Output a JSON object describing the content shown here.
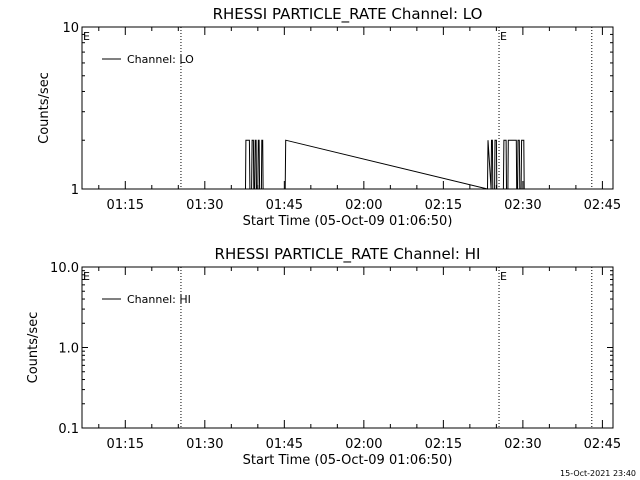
{
  "footer_timestamp": "15-Oct-2021 23:40",
  "chart_data": [
    {
      "type": "line",
      "title": "RHESSI PARTICLE_RATE Channel: LO",
      "xlabel": "Start Time (05-Oct-09 01:06:50)",
      "ylabel": "Counts/sec",
      "y_scale": "log",
      "ylim": [
        1,
        10
      ],
      "y_ticks": [
        {
          "value": 1,
          "label": "1"
        },
        {
          "value": 10,
          "label": "10"
        }
      ],
      "xlim": [
        "01:06:50",
        "02:47:00"
      ],
      "x_ticks": [
        "01:15",
        "01:30",
        "01:45",
        "02:00",
        "02:15",
        "02:30",
        "02:45"
      ],
      "legend": {
        "label": "Channel: LO",
        "placement": "top-left"
      },
      "markers": [
        {
          "label": "E",
          "time": "01:06:50",
          "dotted_line": false
        },
        {
          "label": "",
          "time": "01:25:30",
          "dotted_line": true
        },
        {
          "label": "E",
          "time": "02:25:30",
          "dotted_line": true
        },
        {
          "label": "",
          "time": "02:43:00",
          "dotted_line": true
        }
      ],
      "series": [
        {
          "name": "Channel: LO",
          "points": [
            [
              "01:37:40",
              1
            ],
            [
              "01:37:45",
              2
            ],
            [
              "01:38:25",
              2
            ],
            [
              "01:38:30",
              1
            ],
            [
              "01:38:50",
              1
            ],
            [
              "01:38:55",
              2
            ],
            [
              "01:39:10",
              2
            ],
            [
              "01:39:15",
              1
            ],
            [
              "01:39:25",
              1
            ],
            [
              "01:39:30",
              2
            ],
            [
              "01:39:40",
              2
            ],
            [
              "01:39:45",
              1
            ],
            [
              "01:40:00",
              1
            ],
            [
              "01:40:05",
              2
            ],
            [
              "01:40:15",
              2
            ],
            [
              "01:40:20",
              1
            ],
            [
              "01:40:40",
              1
            ],
            [
              "01:40:45",
              2
            ],
            [
              "01:40:55",
              2
            ],
            [
              "01:41:00",
              1
            ],
            [
              "01:45:10",
              1
            ],
            [
              "01:45:15",
              2
            ],
            [
              "02:23:20",
              1
            ],
            [
              "02:23:25",
              2
            ],
            [
              "02:24:00",
              1
            ],
            [
              "02:24:05",
              2
            ],
            [
              "02:24:15",
              2
            ],
            [
              "02:24:20",
              1
            ],
            [
              "02:24:40",
              1
            ],
            [
              "02:24:45",
              2
            ],
            [
              "02:25:00",
              2
            ],
            [
              "02:25:05",
              1
            ],
            [
              "02:26:20",
              1
            ],
            [
              "02:26:25",
              2
            ],
            [
              "02:26:50",
              2
            ],
            [
              "02:26:55",
              1
            ],
            [
              "02:27:10",
              1
            ],
            [
              "02:27:15",
              2
            ],
            [
              "02:28:45",
              2
            ],
            [
              "02:28:50",
              1
            ],
            [
              "02:29:00",
              1
            ],
            [
              "02:29:05",
              2
            ],
            [
              "02:29:20",
              2
            ],
            [
              "02:29:25",
              1
            ],
            [
              "02:29:40",
              1
            ],
            [
              "02:29:45",
              2
            ],
            [
              "02:30:10",
              2
            ],
            [
              "02:30:15",
              1
            ]
          ]
        }
      ]
    },
    {
      "type": "line",
      "title": "RHESSI PARTICLE_RATE Channel: HI",
      "xlabel": "Start Time (05-Oct-09 01:06:50)",
      "ylabel": "Counts/sec",
      "y_scale": "log",
      "ylim": [
        0.1,
        10
      ],
      "y_ticks": [
        {
          "value": 0.1,
          "label": "0.1"
        },
        {
          "value": 1,
          "label": "1.0"
        },
        {
          "value": 10,
          "label": "10.0"
        }
      ],
      "xlim": [
        "01:06:50",
        "02:47:00"
      ],
      "x_ticks": [
        "01:15",
        "01:30",
        "01:45",
        "02:00",
        "02:15",
        "02:30",
        "02:45"
      ],
      "legend": {
        "label": "Channel: HI",
        "placement": "top-left"
      },
      "markers": [
        {
          "label": "E",
          "time": "01:06:50",
          "dotted_line": false
        },
        {
          "label": "",
          "time": "01:25:30",
          "dotted_line": true
        },
        {
          "label": "E",
          "time": "02:25:30",
          "dotted_line": true
        },
        {
          "label": "",
          "time": "02:43:00",
          "dotted_line": true
        }
      ],
      "series": [
        {
          "name": "Channel: HI",
          "points": []
        }
      ]
    }
  ]
}
